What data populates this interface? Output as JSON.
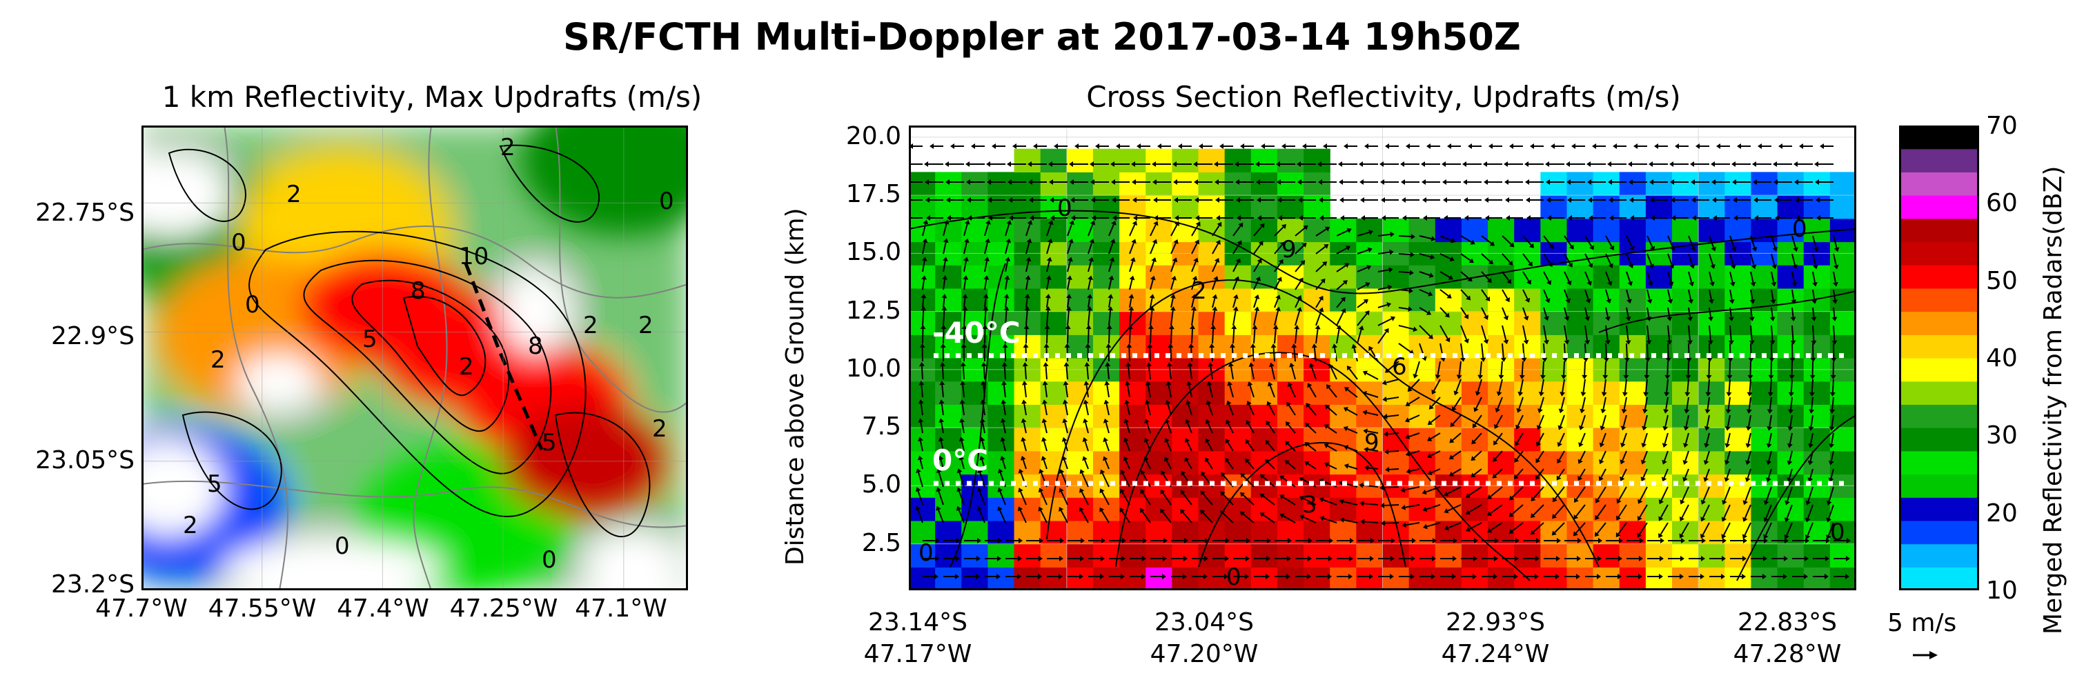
{
  "figure": {
    "title": "SR/FCTH Multi-Doppler at 2017-03-14 19h50Z"
  },
  "colors": {
    "cmap_stops": [
      "#00e5ff",
      "#00b4ff",
      "#0044ff",
      "#0000c8",
      "#00c800",
      "#00e000",
      "#008c00",
      "#1fa01f",
      "#8cd700",
      "#ffff00",
      "#ffd200",
      "#ff9600",
      "#ff5000",
      "#ff0000",
      "#c80000",
      "#b40000",
      "#ff00ff",
      "#c850c8",
      "#6a2d8a",
      "#000000"
    ],
    "freezing_lines": "#ffffff",
    "contours": "#000000",
    "borders": "#808080"
  },
  "left_panel": {
    "title": "1 km Reflectivity, Max Updrafts (m/s)",
    "x_ticks": [
      "47.7°W",
      "47.55°W",
      "47.4°W",
      "47.25°W",
      "47.1°W"
    ],
    "y_ticks": [
      "22.75°S",
      "22.9°S",
      "23.05°S",
      "23.2°S"
    ],
    "contour_labels": [
      "2",
      "2",
      "0",
      "2",
      "5",
      "8",
      "10",
      "2",
      "8",
      "5",
      "2",
      "0",
      "2",
      "2",
      "0",
      "5",
      "0",
      "0",
      "2"
    ]
  },
  "right_panel": {
    "title": "Cross Section Reflectivity, Updrafts (m/s)",
    "ylabel": "Distance above Ground (km)",
    "y_ticks": [
      "20.0",
      "17.5",
      "15.0",
      "12.5",
      "10.0",
      "7.5",
      "5.0",
      "2.5"
    ],
    "x_ticks": [
      {
        "lat": "23.14°S",
        "lon": "47.17°W"
      },
      {
        "lat": "23.04°S",
        "lon": "47.20°W"
      },
      {
        "lat": "22.93°S",
        "lon": "47.24°W"
      },
      {
        "lat": "22.83°S",
        "lon": "47.28°W"
      }
    ],
    "isotherms": [
      {
        "label": "-40°C",
        "height_km": 10.6
      },
      {
        "label": "0°C",
        "height_km": 5.1
      }
    ],
    "contour_labels": [
      "0",
      "2",
      "9",
      "0",
      "6",
      "3",
      "0",
      "9",
      "0",
      "0"
    ],
    "reference_vector": "5 m/s"
  },
  "colorbar": {
    "label": "Merged Reflectivity from Radars(dBZ)",
    "ticks": [
      "70",
      "60",
      "50",
      "40",
      "30",
      "20",
      "10"
    ]
  },
  "chart_data": [
    {
      "type": "heatmap",
      "title": "1 km Reflectivity, Max Updrafts (m/s)",
      "xlabel": "",
      "ylabel": "",
      "xlim": [
        -47.7,
        -47.02
      ],
      "ylim": [
        -23.2,
        -22.66
      ],
      "x_ticks": [
        "47.7°W",
        "47.55°W",
        "47.4°W",
        "47.25°W",
        "47.1°W"
      ],
      "y_ticks": [
        "22.75°S",
        "22.9°S",
        "23.05°S",
        "23.2°S"
      ],
      "grid": true,
      "reflectivity_dbz_cells": [
        {
          "lon": -47.4,
          "lat": -22.87,
          "dbz": 50
        },
        {
          "lon": -47.3,
          "lat": -22.92,
          "dbz": 50
        },
        {
          "lon": -47.2,
          "lat": -22.98,
          "dbz": 50
        },
        {
          "lon": -47.15,
          "lat": -23.05,
          "dbz": 52
        },
        {
          "lon": -47.55,
          "lat": -22.9,
          "dbz": 45
        },
        {
          "lon": -47.45,
          "lat": -22.78,
          "dbz": 40
        },
        {
          "lon": -47.6,
          "lat": -22.8,
          "dbz": 32
        },
        {
          "lon": -47.65,
          "lat": -23.1,
          "dbz": 18
        },
        {
          "lon": -47.3,
          "lat": -23.12,
          "dbz": 25
        },
        {
          "lon": -47.1,
          "lat": -22.7,
          "dbz": 28
        }
      ],
      "updraft_contour_levels_ms": [
        0,
        2,
        5,
        8,
        10
      ]
    },
    {
      "type": "heatmap",
      "title": "Cross Section Reflectivity, Updrafts (m/s)",
      "xlabel": "",
      "ylabel": "Distance above Ground (km)",
      "ylim": [
        0.5,
        20.5
      ],
      "x_ticks": [
        "23.14°S 47.17°W",
        "23.04°S 47.20°W",
        "22.93°S 47.24°W",
        "22.83°S 47.28°W"
      ],
      "y_ticks": [
        2.5,
        5.0,
        7.5,
        10.0,
        12.5,
        15.0,
        17.5,
        20.0
      ],
      "grid": true,
      "isotherms": [
        {
          "label": "-40°C",
          "height_km": 10.6
        },
        {
          "label": "0°C",
          "height_km": 5.1
        }
      ],
      "columns_dbz_by_height": [
        {
          "x": "23.14°S",
          "profile": [
            [
              1,
              20
            ],
            [
              4,
              22
            ],
            [
              8,
              30
            ],
            [
              12,
              28
            ],
            [
              16,
              25
            ],
            [
              18,
              30
            ]
          ]
        },
        {
          "x": "23.10°S",
          "profile": [
            [
              1,
              52
            ],
            [
              4,
              45
            ],
            [
              8,
              38
            ],
            [
              12,
              33
            ],
            [
              16,
              30
            ],
            [
              19,
              35
            ]
          ]
        },
        {
          "x": "23.06°S",
          "profile": [
            [
              1,
              55
            ],
            [
              4,
              53
            ],
            [
              8,
              55
            ],
            [
              12,
              45
            ],
            [
              16,
              38
            ],
            [
              19,
              38
            ]
          ]
        },
        {
          "x": "23.02°S",
          "profile": [
            [
              1,
              52
            ],
            [
              4,
              52
            ],
            [
              8,
              50
            ],
            [
              12,
              40
            ],
            [
              16,
              30
            ],
            [
              19,
              30
            ]
          ]
        },
        {
          "x": "22.98°S",
          "profile": [
            [
              1,
              50
            ],
            [
              4,
              50
            ],
            [
              8,
              45
            ],
            [
              12,
              35
            ],
            [
              16,
              28
            ]
          ]
        },
        {
          "x": "22.93°S",
          "profile": [
            [
              1,
              52
            ],
            [
              4,
              50
            ],
            [
              8,
              45
            ],
            [
              12,
              38
            ],
            [
              16,
              18
            ]
          ]
        },
        {
          "x": "22.89°S",
          "profile": [
            [
              1,
              48
            ],
            [
              4,
              45
            ],
            [
              8,
              40
            ],
            [
              12,
              30
            ],
            [
              16,
              18
            ],
            [
              18,
              12
            ]
          ]
        },
        {
          "x": "22.85°S",
          "profile": [
            [
              1,
              40
            ],
            [
              4,
              38
            ],
            [
              8,
              35
            ],
            [
              12,
              28
            ],
            [
              16,
              18
            ],
            [
              18,
              12
            ]
          ]
        },
        {
          "x": "22.81°S",
          "profile": [
            [
              1,
              30
            ],
            [
              4,
              28
            ],
            [
              8,
              28
            ],
            [
              12,
              28
            ],
            [
              16,
              18
            ],
            [
              18,
              12
            ]
          ]
        }
      ],
      "updraft_contour_levels_ms": [
        0,
        3,
        6,
        9
      ],
      "reference_vector": "5 m/s"
    },
    {
      "type": "heatmap",
      "title": "",
      "ylabel": "Merged Reflectivity from Radars(dBZ)",
      "ylim": [
        10,
        70
      ],
      "ticks": [
        10,
        20,
        30,
        40,
        50,
        60,
        70
      ]
    }
  ]
}
